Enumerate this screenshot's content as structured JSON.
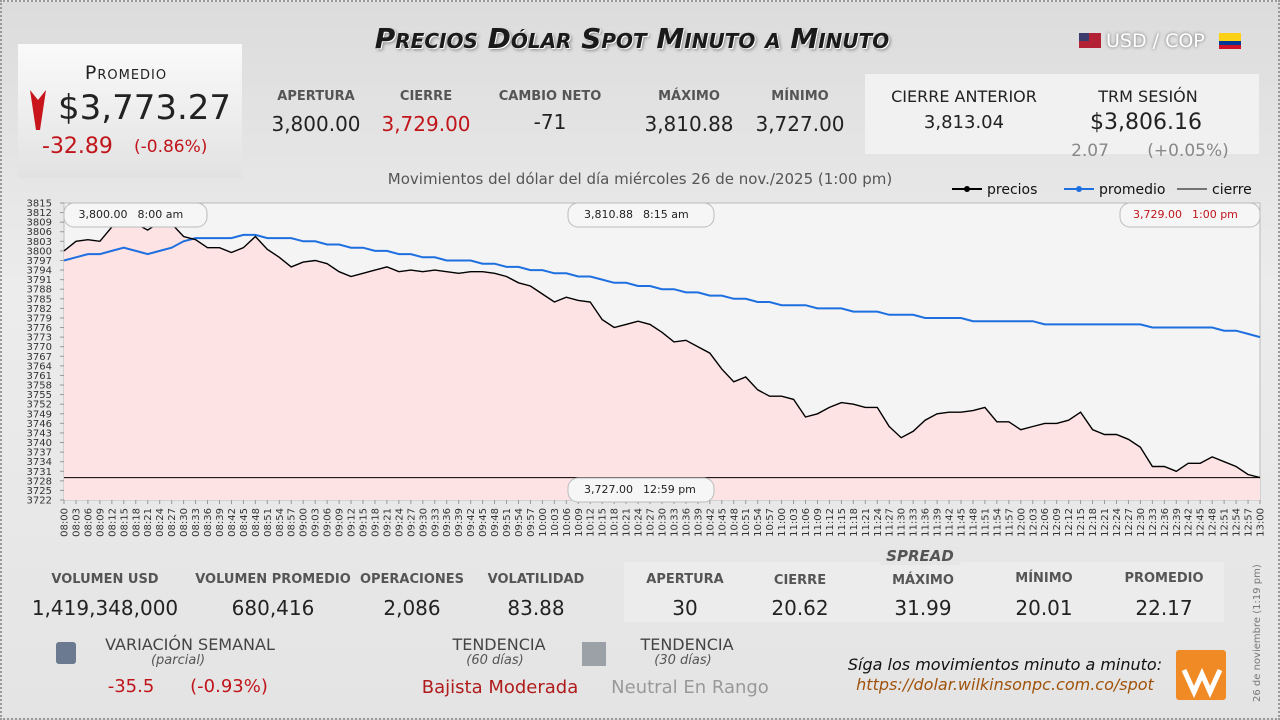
{
  "header": {
    "title": "Precios Dólar Spot Minuto a Minuto",
    "pair": "USD / COP"
  },
  "promedio": {
    "label": "Promedio",
    "value": "$3,773.27",
    "change": "-32.89",
    "percent": "(-0.86%)"
  },
  "stats": [
    {
      "label": "APERTURA",
      "value": "3,800.00"
    },
    {
      "label": "CIERRE",
      "value": "3,729.00"
    },
    {
      "label": "CAMBIO NETO",
      "value": "-71"
    },
    {
      "label": "MÁXIMO",
      "value": "3,810.88"
    },
    {
      "label": "MÍNIMO",
      "value": "3,727.00"
    }
  ],
  "previous": {
    "label": "CIERRE ANTERIOR",
    "value": "3,813.04"
  },
  "trm": {
    "label": "TRM SESIÓN",
    "value": "$3,806.16",
    "change": "2.07",
    "percent": "(+0.05%)"
  },
  "chart_data": {
    "type": "line",
    "subtitle": "Movimientos del dólar del día miércoles 26 de nov./2025 (1:00 pm)",
    "x": [
      "08:00",
      "08:03",
      "08:06",
      "08:09",
      "08:12",
      "08:15",
      "08:18",
      "08:21",
      "08:24",
      "08:27",
      "08:30",
      "08:33",
      "08:36",
      "08:39",
      "08:42",
      "08:45",
      "08:48",
      "08:51",
      "08:54",
      "08:57",
      "09:00",
      "09:03",
      "09:06",
      "09:09",
      "09:12",
      "09:15",
      "09:18",
      "09:21",
      "09:24",
      "09:27",
      "09:30",
      "09:33",
      "09:36",
      "09:39",
      "09:42",
      "09:45",
      "09:48",
      "09:51",
      "09:54",
      "09:57",
      "10:00",
      "10:03",
      "10:06",
      "10:09",
      "10:12",
      "10:15",
      "10:18",
      "10:21",
      "10:24",
      "10:27",
      "10:30",
      "10:33",
      "10:36",
      "10:39",
      "10:42",
      "10:45",
      "10:48",
      "10:51",
      "10:54",
      "10:57",
      "11:00",
      "11:03",
      "11:06",
      "11:09",
      "11:12",
      "11:15",
      "11:18",
      "11:21",
      "11:24",
      "11:27",
      "11:30",
      "11:33",
      "11:36",
      "11:39",
      "11:42",
      "11:45",
      "11:48",
      "11:51",
      "11:54",
      "11:57",
      "12:00",
      "12:03",
      "12:06",
      "12:09",
      "12:12",
      "12:15",
      "12:18",
      "12:21",
      "12:24",
      "12:27",
      "12:30",
      "12:33",
      "12:36",
      "12:39",
      "12:42",
      "12:45",
      "12:48",
      "12:51",
      "12:54",
      "12:57",
      "13:00"
    ],
    "series": [
      {
        "name": "precios",
        "color": "#000000",
        "values": [
          3800,
          3803,
          3803.5,
          3803,
          3807.5,
          3810,
          3808.5,
          3806.5,
          3809,
          3808.5,
          3804.5,
          3803.5,
          3801,
          3801,
          3799.5,
          3801,
          3804.5,
          3800.5,
          3798,
          3795,
          3796.5,
          3797,
          3796,
          3793.5,
          3792,
          3793,
          3794,
          3795,
          3793.5,
          3794,
          3793.5,
          3794,
          3793.5,
          3793,
          3793.5,
          3793.5,
          3793,
          3792,
          3790,
          3789,
          3786.5,
          3784,
          3785.5,
          3784.5,
          3784,
          3778.5,
          3776,
          3777,
          3778,
          3777,
          3774.5,
          3771.5,
          3772,
          3770,
          3768,
          3763,
          3759,
          3760.5,
          3756.5,
          3754.5,
          3754.5,
          3753.5,
          3748,
          3749,
          3751,
          3752.5,
          3752,
          3751,
          3751,
          3745,
          3741.5,
          3743.5,
          3747,
          3749,
          3749.5,
          3749.5,
          3750,
          3751,
          3746.5,
          3746.5,
          3744,
          3745,
          3746,
          3746,
          3747,
          3749.5,
          3744,
          3742.5,
          3742.5,
          3741,
          3738.5,
          3732.5,
          3732.5,
          3731,
          3733.5,
          3733.5,
          3735.5,
          3734,
          3732.5,
          3730,
          3729
        ]
      },
      {
        "name": "promedio",
        "color": "#1e6fe0",
        "values": [
          3797,
          3798,
          3799,
          3799,
          3800,
          3801,
          3800,
          3799,
          3800,
          3801,
          3803,
          3804,
          3804,
          3804,
          3804,
          3805,
          3805,
          3804,
          3804,
          3804,
          3803,
          3803,
          3802,
          3802,
          3801,
          3801,
          3800,
          3800,
          3799,
          3799,
          3798,
          3798,
          3797,
          3797,
          3797,
          3796,
          3796,
          3795,
          3795,
          3794,
          3794,
          3793,
          3793,
          3792,
          3792,
          3791,
          3790,
          3790,
          3789,
          3789,
          3788,
          3788,
          3787,
          3787,
          3786,
          3786,
          3785,
          3785,
          3784,
          3784,
          3783,
          3783,
          3783,
          3782,
          3782,
          3782,
          3781,
          3781,
          3781,
          3780,
          3780,
          3780,
          3779,
          3779,
          3779,
          3779,
          3778,
          3778,
          3778,
          3778,
          3778,
          3778,
          3777,
          3777,
          3777,
          3777,
          3777,
          3777,
          3777,
          3777,
          3777,
          3776,
          3776,
          3776,
          3776,
          3776,
          3776,
          3775,
          3775,
          3774,
          3773
        ]
      }
    ],
    "reference_line": {
      "name": "cierre",
      "color": "#000000",
      "value": 3729
    },
    "area_color": "#fde3e4",
    "ylim": [
      3722,
      3815
    ],
    "yticks": [
      3722,
      3725,
      3728,
      3731,
      3734,
      3737,
      3740,
      3743,
      3746,
      3749,
      3752,
      3755,
      3758,
      3761,
      3764,
      3767,
      3770,
      3773,
      3776,
      3779,
      3782,
      3785,
      3788,
      3791,
      3794,
      3797,
      3800,
      3803,
      3806,
      3809,
      3812,
      3815
    ],
    "grid": false,
    "legend": "upper right",
    "annotations": [
      {
        "value": "3,800.00",
        "time": "8:00 am"
      },
      {
        "value": "3,810.88",
        "time": "8:15 am"
      },
      {
        "value": "3,729.00",
        "time": "1:00 pm"
      },
      {
        "value": "3,727.00",
        "time": "12:59 pm"
      }
    ]
  },
  "volume": [
    {
      "label": "VOLUMEN USD",
      "value": "1,419,348,000"
    },
    {
      "label": "VOLUMEN PROMEDIO",
      "value": "680,416"
    },
    {
      "label": "OPERACIONES",
      "value": "2,086"
    },
    {
      "label": "VOLATILIDAD",
      "value": "83.88"
    }
  ],
  "spread": {
    "title": "SPREAD",
    "items": [
      {
        "label": "APERTURA",
        "value": "30"
      },
      {
        "label": "CIERRE",
        "value": "20.62"
      },
      {
        "label": "MÁXIMO",
        "value": "31.99"
      },
      {
        "label": "MÍNIMO",
        "value": "20.01"
      },
      {
        "label": "PROMEDIO",
        "value": "22.17"
      }
    ]
  },
  "weekly": {
    "label": "VARIACIÓN SEMANAL",
    "note": "(parcial)",
    "change": "-35.5",
    "percent": "(-0.93%)"
  },
  "trend60": {
    "label": "TENDENCIA",
    "note": "(60 días)",
    "value": "Bajista Moderada"
  },
  "trend30": {
    "label": "TENDENCIA",
    "note": "(30 días)",
    "value": "Neutral En Rango"
  },
  "footer": {
    "text": "Síga los movimientos minuto a minuto:",
    "link": "https://dolar.wilkinsonpc.com.co/spot",
    "stamp": "26 de noviembre (1:19 pm)"
  }
}
